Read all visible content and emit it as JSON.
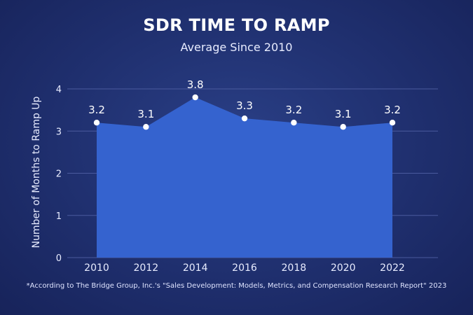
{
  "header": {
    "title": "SDR TIME TO RAMP",
    "subtitle": "Average Since 2010"
  },
  "footnote": "*According to The Bridge Group, Inc.'s \"Sales Development: Models, Metrics, and Compensation Research Report\" 2023",
  "colors": {
    "background": "#1f2f6e",
    "area_fill": "#3563cf",
    "point": "#ffffff",
    "grid": "#4a5a9e"
  },
  "chart_data": {
    "type": "area",
    "title": "SDR TIME TO RAMP",
    "subtitle": "Average Since 2010",
    "xlabel": "",
    "ylabel": "Number of Months to Ramp Up",
    "x": [
      2010,
      2012,
      2014,
      2016,
      2018,
      2020,
      2022
    ],
    "series": [
      {
        "values": [
          3.2,
          3.1,
          3.8,
          3.3,
          3.2,
          3.1,
          3.2
        ]
      }
    ],
    "data_labels": [
      "3.2",
      "3.1",
      "3.8",
      "3.3",
      "3.2",
      "3.1",
      "3.2"
    ],
    "x_tick_labels": [
      "2010",
      "2012",
      "2014",
      "2016",
      "2018",
      "2020",
      "2022"
    ],
    "y_ticks": [
      0,
      1,
      2,
      3,
      4
    ],
    "y_tick_labels": [
      "0",
      "1",
      "2",
      "3",
      "4"
    ],
    "ylim": [
      0,
      4
    ],
    "grid": true,
    "legend": "none"
  }
}
